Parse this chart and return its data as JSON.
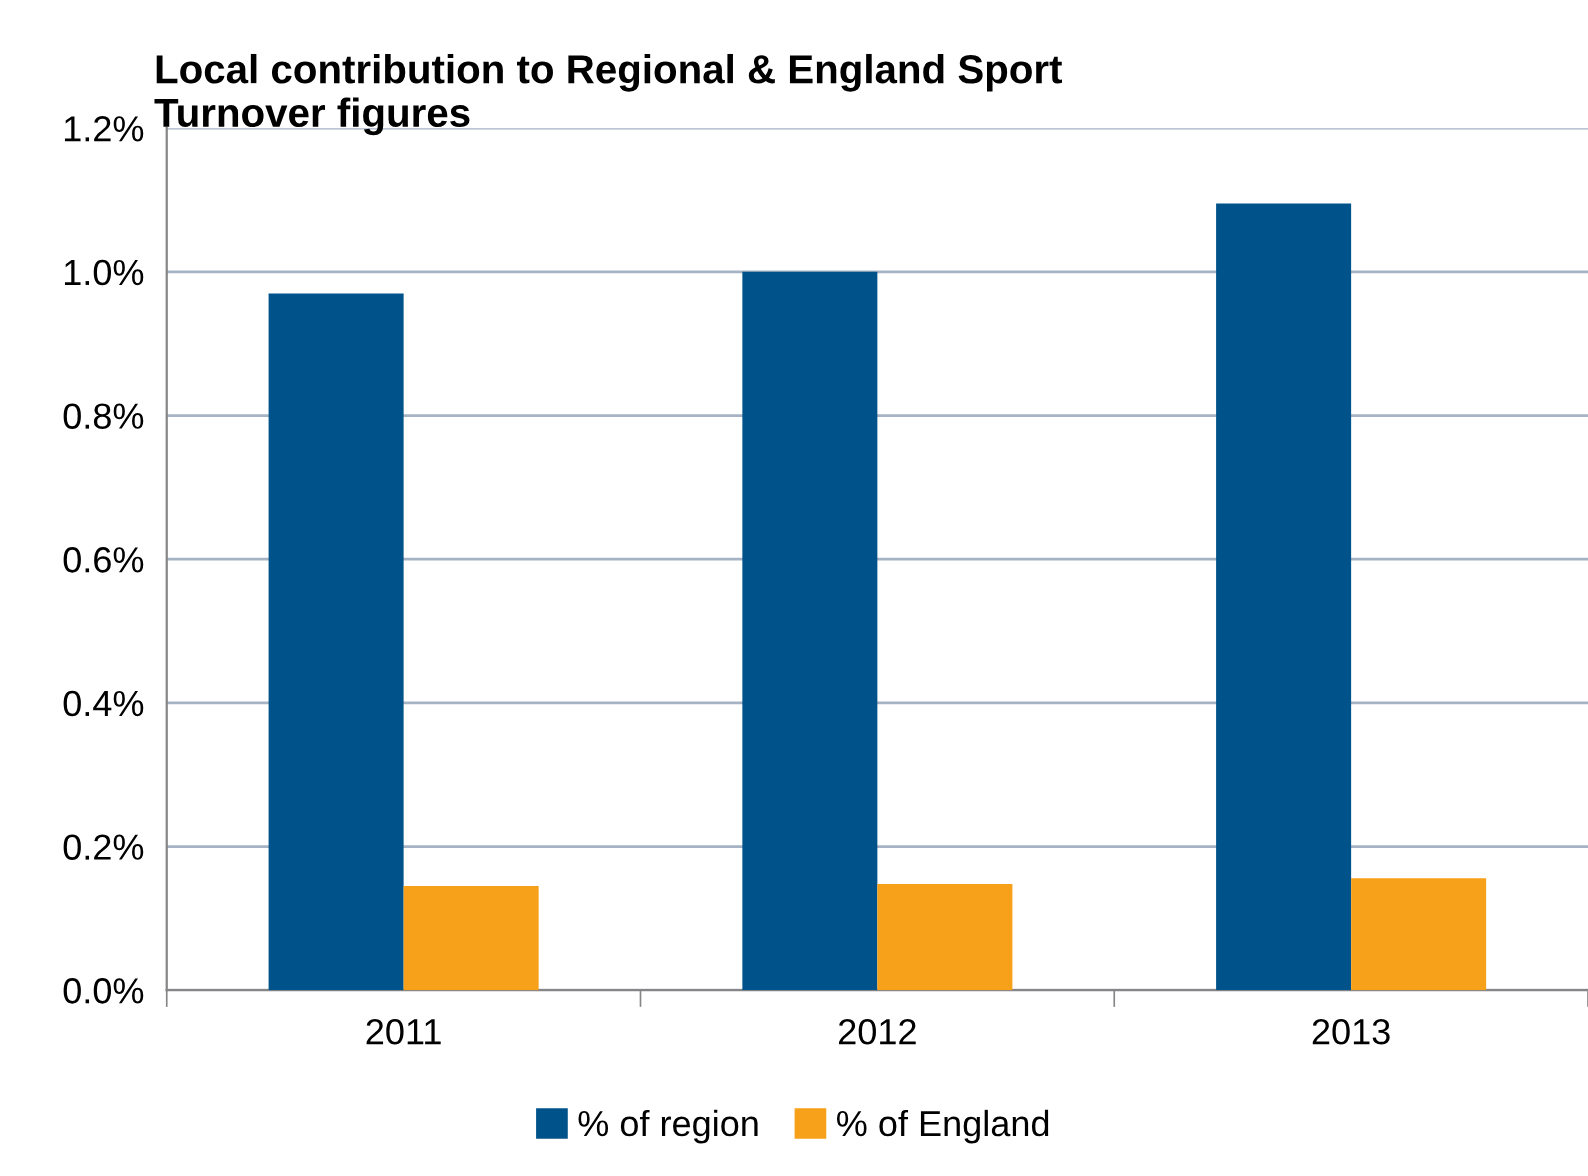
{
  "chart_data": {
    "type": "bar",
    "title": "Local contribution to Regional & England Sport\nTurnover figures",
    "categories": [
      "2011",
      "2012",
      "2013"
    ],
    "series": [
      {
        "name": "% of region",
        "color": "#00538a",
        "values": [
          0.97,
          1.0,
          1.095
        ]
      },
      {
        "name": "% of England",
        "color": "#f7a11a",
        "values": [
          0.145,
          0.148,
          0.156
        ]
      }
    ],
    "ylim": [
      0,
      1.2
    ],
    "yticks": [
      {
        "value": 0,
        "label": "0.0%"
      },
      {
        "value": 0.2,
        "label": "0.2%"
      },
      {
        "value": 0.4,
        "label": "0.4%"
      },
      {
        "value": 0.6,
        "label": "0.6%"
      },
      {
        "value": 0.8,
        "label": "0.8%"
      },
      {
        "value": 1.0,
        "label": "1.0%"
      },
      {
        "value": 1.2,
        "label": "1.2%"
      }
    ],
    "grid": "y",
    "legend": "bottom"
  }
}
